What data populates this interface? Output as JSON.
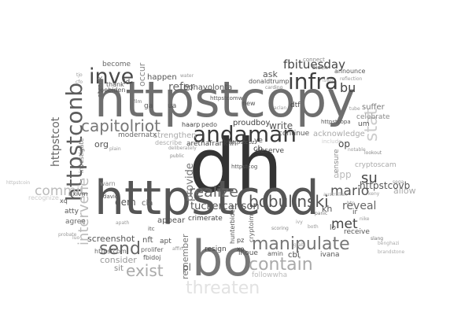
{
  "words": [
    {
      "text": "httpstcopy",
      "color": "#6e6e6e"
    },
    {
      "text": "dh",
      "color": "#333333"
    },
    {
      "text": "httpstcod",
      "color": "#555555"
    },
    {
      "text": "bo",
      "color": "#777777"
    },
    {
      "text": "httpstconb",
      "color": "#5c5c5c"
    },
    {
      "text": "andaman",
      "color": "#3a3a3a"
    },
    {
      "text": "infra",
      "color": "#3f3f3f"
    },
    {
      "text": "inve",
      "color": "#4a4a4a"
    },
    {
      "text": "capitolriot",
      "color": "#777777"
    },
    {
      "text": "bobulinski",
      "color": "#555555"
    },
    {
      "text": "manipulate",
      "color": "#777777"
    },
    {
      "text": "realize",
      "color": "#666666"
    },
    {
      "text": "send",
      "color": "#666666"
    },
    {
      "text": "contain",
      "color": "#aaaaaa"
    },
    {
      "text": "exist",
      "color": "#aaaaaa"
    },
    {
      "text": "threaten",
      "color": "#e2e2e2"
    },
    {
      "text": "stat",
      "color": "#cccccc"
    },
    {
      "text": "mario",
      "color": "#555555"
    },
    {
      "text": "met",
      "color": "#444444"
    },
    {
      "text": "su",
      "color": "#444444"
    },
    {
      "text": "intervene",
      "color": "#bbbbbb"
    },
    {
      "text": "commit",
      "color": "#bbbbbb"
    },
    {
      "text": "fbituesday",
      "color": "#444444"
    },
    {
      "text": "bu",
      "color": "#444444"
    },
    {
      "text": "tuckercarlson",
      "color": "#555555"
    },
    {
      "text": "reveal",
      "color": "#666666"
    },
    {
      "text": "httpstcovb",
      "color": "#555555"
    },
    {
      "text": "httpstcot",
      "color": "#666666"
    },
    {
      "text": "provide",
      "color": "#777777"
    },
    {
      "text": "remember",
      "color": "#777777"
    },
    {
      "text": "screenshot",
      "color": "#555555"
    },
    {
      "text": "consider",
      "color": "#999999"
    },
    {
      "text": "sit",
      "color": "#888888"
    },
    {
      "text": "dem",
      "color": "#555555"
    },
    {
      "text": "cla",
      "color": "#666666"
    },
    {
      "text": "refer",
      "color": "#666666"
    },
    {
      "text": "ask",
      "color": "#555555"
    },
    {
      "text": "write",
      "color": "#555555"
    },
    {
      "text": "proudboy",
      "color": "#444444"
    },
    {
      "text": "strengthen",
      "color": "#aaaaaa"
    },
    {
      "text": "arethafranklin",
      "color": "#444444"
    },
    {
      "text": "org",
      "color": "#555555"
    },
    {
      "text": "occur",
      "color": "#888888"
    },
    {
      "text": "happen",
      "color": "#555555"
    },
    {
      "text": "bonavolonta",
      "color": "#555555"
    },
    {
      "text": "become",
      "color": "#666666"
    },
    {
      "text": "appear",
      "color": "#555555"
    },
    {
      "text": "crimerate",
      "color": "#444444"
    },
    {
      "text": "resign",
      "color": "#444444"
    },
    {
      "text": "inoue",
      "color": "#555555"
    },
    {
      "text": "cbi",
      "color": "#444444"
    },
    {
      "text": "ivana",
      "color": "#555555"
    },
    {
      "text": "receive",
      "color": "#555555"
    },
    {
      "text": "ensure",
      "color": "#888888"
    },
    {
      "text": "allow",
      "color": "#aaaaaa"
    },
    {
      "text": "cryptoscam",
      "color": "#aaaaaa"
    },
    {
      "text": "suffer",
      "color": "#777777"
    },
    {
      "text": "celebrate",
      "color": "#888888"
    },
    {
      "text": "acknowledge",
      "color": "#aaaaaa"
    },
    {
      "text": "continue",
      "color": "#555555"
    },
    {
      "text": "deserve",
      "color": "#444444"
    },
    {
      "text": "op",
      "color": "#444444"
    },
    {
      "text": "app",
      "color": "#bbbbbb"
    },
    {
      "text": "kh",
      "color": "#555555"
    },
    {
      "text": "ir",
      "color": "#555555"
    },
    {
      "text": "lo",
      "color": "#555555"
    },
    {
      "text": "nft",
      "color": "#555555"
    },
    {
      "text": "pl",
      "color": "#666666"
    },
    {
      "text": "apt",
      "color": "#555555"
    },
    {
      "text": "atty",
      "color": "#555555"
    },
    {
      "text": "agree",
      "color": "#666666"
    },
    {
      "text": "warn",
      "color": "#888888"
    },
    {
      "text": "describe",
      "color": "#aaaaaa"
    },
    {
      "text": "modernatx",
      "color": "#666666"
    },
    {
      "text": "haarp",
      "color": "#444444"
    },
    {
      "text": "pedo",
      "color": "#555555"
    },
    {
      "text": "new",
      "color": "#555555"
    },
    {
      "text": "dtf",
      "color": "#444444"
    },
    {
      "text": "cb",
      "color": "#444444"
    },
    {
      "text": "ye",
      "color": "#444444"
    },
    {
      "text": "pz",
      "color": "#444444"
    },
    {
      "text": "xo",
      "color": "#444444"
    },
    {
      "text": "hunterbiden",
      "color": "#555555"
    },
    {
      "text": "cryptoim",
      "color": "#666666"
    },
    {
      "text": "amin",
      "color": "#555555"
    },
    {
      "text": "strzok",
      "color": "#666666"
    },
    {
      "text": "investigate",
      "color": "#777777"
    },
    {
      "text": "nxivm",
      "color": "#555555"
    },
    {
      "text": "xq",
      "color": "#555555"
    },
    {
      "text": "httpstcom",
      "color": "#666666"
    },
    {
      "text": "um",
      "color": "#555555"
    },
    {
      "text": "thank",
      "color": "#555555"
    },
    {
      "text": "joebiden",
      "color": "#555555"
    },
    {
      "text": "donaldtrump",
      "color": "#555555"
    },
    {
      "text": "announce",
      "color": "#555555"
    },
    {
      "text": "connect",
      "color": "#888888"
    },
    {
      "text": "ua",
      "color": "#555555"
    },
    {
      "text": "ld",
      "color": "#555555"
    },
    {
      "text": "ga",
      "color": "#555555"
    },
    {
      "text": "fbidoj",
      "color": "#555555"
    },
    {
      "text": "prolifer",
      "color": "#666666"
    },
    {
      "text": "itc",
      "color": "#555555"
    },
    {
      "text": "followwha",
      "color": "#bbbbbb"
    },
    {
      "text": "httpstcoz",
      "color": "#555555"
    },
    {
      "text": "httpstcopa",
      "color": "#555555"
    },
    {
      "text": "httpstcog",
      "color": "#555555"
    },
    {
      "text": "httpstcomw",
      "color": "#555555"
    },
    {
      "text": "david",
      "color": "#555555"
    },
    {
      "text": "recognize",
      "color": "#cccccc"
    },
    {
      "text": "include",
      "color": "#cccccc"
    },
    {
      "text": "biden",
      "color": "#666666"
    },
    {
      "text": "panic",
      "color": "#777777"
    },
    {
      "text": "slang",
      "color": "#777777"
    },
    {
      "text": "lookout",
      "color": "#888888"
    },
    {
      "text": "reflection",
      "color": "#999999"
    },
    {
      "text": "carding",
      "color": "#888888"
    },
    {
      "text": "public",
      "color": "#888888"
    },
    {
      "text": "scoring",
      "color": "#888888"
    },
    {
      "text": "nike",
      "color": "#999999"
    },
    {
      "text": "film",
      "color": "#777777"
    },
    {
      "text": "cfo",
      "color": "#999999"
    },
    {
      "text": "tjo",
      "color": "#999999"
    },
    {
      "text": "plain",
      "color": "#999999"
    },
    {
      "text": "tube",
      "color": "#999999"
    },
    {
      "text": "sega",
      "color": "#999999"
    },
    {
      "text": "luo",
      "color": "#999999"
    },
    {
      "text": "australian",
      "color": "#999999"
    },
    {
      "text": "httpstcoin",
      "color": "#bbbbbb"
    },
    {
      "text": "deliberately",
      "color": "#999999"
    },
    {
      "text": "notable",
      "color": "#999999"
    },
    {
      "text": "water",
      "color": "#999999"
    },
    {
      "text": "probate",
      "color": "#999999"
    },
    {
      "text": "apath",
      "color": "#999999"
    },
    {
      "text": "affin",
      "color": "#999999"
    },
    {
      "text": "grab",
      "color": "#999999"
    },
    {
      "text": "ivy",
      "color": "#999999"
    },
    {
      "text": "both",
      "color": "#999999"
    },
    {
      "text": "htp",
      "color": "#999999"
    },
    {
      "text": "keny",
      "color": "#999999"
    },
    {
      "text": "aclan",
      "color": "#999999"
    },
    {
      "text": "brandstone",
      "color": "#aaaaaa"
    },
    {
      "text": "benghazi",
      "color": "#aaaaaa"
    },
    {
      "text": "iswn",
      "color": "#aaaaaa"
    }
  ]
}
